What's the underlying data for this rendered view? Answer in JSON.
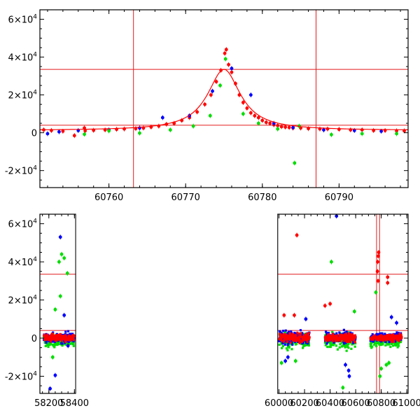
{
  "chart_data": [
    {
      "type": "scatter",
      "title": "",
      "xlabel": "",
      "ylabel": "",
      "xlim": [
        60751,
        60799
      ],
      "ylim": [
        -29000,
        65000
      ],
      "xticks": [
        60760,
        60770,
        60780,
        60790
      ],
      "yticks": [
        -20000,
        0,
        20000,
        40000,
        60000
      ],
      "ytick_labels": [
        {
          "mant": "-2×10",
          "exp": "4"
        },
        {
          "mant": "0",
          "exp": ""
        },
        {
          "mant": "2×10",
          "exp": "4"
        },
        {
          "mant": "4×10",
          "exp": "4"
        },
        {
          "mant": "6×10",
          "exp": "4"
        }
      ],
      "hlines": [
        33500,
        4000
      ],
      "vlines": [
        60763.2,
        60787.0
      ],
      "line_color": "#e41a1c",
      "series": [
        {
          "color": "#ff0000",
          "points": [
            [
              60751.5,
              1500
            ],
            [
              60752.5,
              1200
            ],
            [
              60754,
              800
            ],
            [
              60755.5,
              -1500
            ],
            [
              60756.8,
              2500
            ],
            [
              60756.9,
              1000
            ],
            [
              60758,
              1300
            ],
            [
              60759.5,
              1500
            ],
            [
              60761,
              1800
            ],
            [
              60762,
              2000
            ],
            [
              60763.5,
              2200
            ],
            [
              60764.5,
              2500
            ],
            [
              60765.5,
              3000
            ],
            [
              60766.5,
              3500
            ],
            [
              60767.5,
              4500
            ],
            [
              60768.5,
              5000
            ],
            [
              60769.5,
              6500
            ],
            [
              60770.5,
              8000
            ],
            [
              60771.5,
              11000
            ],
            [
              60772.5,
              15000
            ],
            [
              60773.3,
              20000
            ],
            [
              60774,
              27000
            ],
            [
              60774.6,
              33000
            ],
            [
              60775.1,
              42000
            ],
            [
              60775.3,
              44000
            ],
            [
              60775.6,
              36000
            ],
            [
              60776,
              32000
            ],
            [
              60776.5,
              26000
            ],
            [
              60777,
              20000
            ],
            [
              60777.5,
              16000
            ],
            [
              60778,
              13000
            ],
            [
              60778.5,
              10500
            ],
            [
              60779,
              9000
            ],
            [
              60779.5,
              8000
            ],
            [
              60780,
              6500
            ],
            [
              60780.5,
              5500
            ],
            [
              60781,
              5000
            ],
            [
              60781.5,
              4200
            ],
            [
              60782,
              3800
            ],
            [
              60782.5,
              3200
            ],
            [
              60783,
              3000
            ],
            [
              60783.5,
              2800
            ],
            [
              60784,
              2500
            ],
            [
              60785,
              2500
            ],
            [
              60786,
              2200
            ],
            [
              60787.5,
              2000
            ],
            [
              60788.5,
              2000
            ],
            [
              60790,
              1800
            ],
            [
              60791.5,
              1500
            ],
            [
              60793,
              1500
            ],
            [
              60794.5,
              1200
            ],
            [
              60796,
              1200
            ],
            [
              60797.5,
              1000
            ],
            [
              60798.5,
              1000
            ]
          ]
        },
        {
          "color": "#0000ff",
          "points": [
            [
              60752,
              -500
            ],
            [
              60753.5,
              500
            ],
            [
              60756,
              1200
            ],
            [
              60760,
              1500
            ],
            [
              60764,
              2500
            ],
            [
              60767,
              8000
            ],
            [
              60770.5,
              9000
            ],
            [
              60773.5,
              22000
            ],
            [
              60776,
              34000
            ],
            [
              60778.5,
              20000
            ],
            [
              60781.5,
              5000
            ],
            [
              60784,
              2800
            ],
            [
              60788,
              1500
            ],
            [
              60792,
              1200
            ],
            [
              60795.5,
              800
            ]
          ]
        },
        {
          "color": "#00dd00",
          "points": [
            [
              60756.8,
              -800
            ],
            [
              60760,
              1000
            ],
            [
              60764,
              -200
            ],
            [
              60768,
              1500
            ],
            [
              60771,
              3500
            ],
            [
              60773.2,
              9000
            ],
            [
              60774.5,
              25000
            ],
            [
              60775.2,
              39000
            ],
            [
              60777.5,
              10000
            ],
            [
              60779.5,
              5000
            ],
            [
              60782,
              2000
            ],
            [
              60784.2,
              -16000
            ],
            [
              60784.8,
              3500
            ],
            [
              60789,
              -1000
            ],
            [
              60793,
              -500
            ],
            [
              60797.5,
              -500
            ]
          ]
        }
      ],
      "model_curve": {
        "type": "lorentzian",
        "peak_x": 60775.0,
        "peak_y": 33500,
        "baseline": 1200,
        "half_width": 2.6,
        "color": "#ff0000"
      }
    },
    {
      "type": "scatter",
      "title": "",
      "xlabel": "",
      "ylabel": "",
      "xlim": [
        58130,
        61010
      ],
      "ylim": [
        -29000,
        65000
      ],
      "xticks": [
        58200,
        58400,
        60000,
        60200,
        60400,
        60600,
        60800,
        61000
      ],
      "xtick_labels": [
        "58200",
        "58400",
        "60000",
        "60200",
        "60400",
        "60600",
        "60800",
        "61000"
      ],
      "yticks": [
        -20000,
        0,
        20000,
        40000,
        60000
      ],
      "ytick_labels": [
        {
          "mant": "-2×10",
          "exp": "4"
        },
        {
          "mant": "0",
          "exp": ""
        },
        {
          "mant": "2×10",
          "exp": "4"
        },
        {
          "mant": "4×10",
          "exp": "4"
        },
        {
          "mant": "6×10",
          "exp": "4"
        }
      ],
      "x_gap": [
        58410,
        59990
      ],
      "hlines": [
        33500,
        4000
      ],
      "vlines": [
        60763.2,
        60787.0
      ],
      "line_color": "#e41a1c",
      "segments": [
        {
          "range": [
            58160,
            58400
          ],
          "noise": 1800
        },
        {
          "range": [
            60000,
            60240
          ],
          "noise": 2200
        },
        {
          "range": [
            60360,
            60600
          ],
          "noise": 2000
        },
        {
          "range": [
            60715,
            60960
          ],
          "noise": 1600
        }
      ],
      "series": [
        {
          "color": "#0000ff",
          "points": [
            [
              58290,
              53000
            ],
            [
              58210,
              -26500
            ],
            [
              58250,
              -19500
            ],
            [
              58320,
              12000
            ],
            [
              58350,
              -4000
            ],
            [
              60050,
              -12000
            ],
            [
              60070,
              -10000
            ],
            [
              60210,
              10000
            ],
            [
              60450,
              64000
            ],
            [
              60520,
              -14000
            ],
            [
              60545,
              -17000
            ],
            [
              60550,
              -20000
            ],
            [
              60880,
              11000
            ],
            [
              60920,
              8000
            ]
          ]
        },
        {
          "color": "#00dd00",
          "points": [
            [
              58280,
              40000
            ],
            [
              58300,
              44000
            ],
            [
              58320,
              42000
            ],
            [
              58345,
              34000
            ],
            [
              58250,
              15000
            ],
            [
              58290,
              22000
            ],
            [
              58230,
              -10000
            ],
            [
              60020,
              -13000
            ],
            [
              60130,
              -12000
            ],
            [
              60410,
              40000
            ],
            [
              60500,
              -26000
            ],
            [
              60590,
              14000
            ],
            [
              60758,
              24000
            ],
            [
              60790,
              -20000
            ],
            [
              60800,
              -16000
            ],
            [
              60840,
              -14000
            ],
            [
              60860,
              -13000
            ]
          ]
        },
        {
          "color": "#ff0000",
          "points": [
            [
              60140,
              54000
            ],
            [
              60120,
              12000
            ],
            [
              60360,
              17000
            ],
            [
              60780,
              45000
            ],
            [
              60776,
              43000
            ],
            [
              60772,
              40000
            ],
            [
              60770,
              35000
            ],
            [
              60775,
              30000
            ],
            [
              60850,
              32000
            ],
            [
              60850,
              29000
            ],
            [
              60400,
              18000
            ],
            [
              60040,
              12000
            ]
          ]
        }
      ]
    }
  ]
}
